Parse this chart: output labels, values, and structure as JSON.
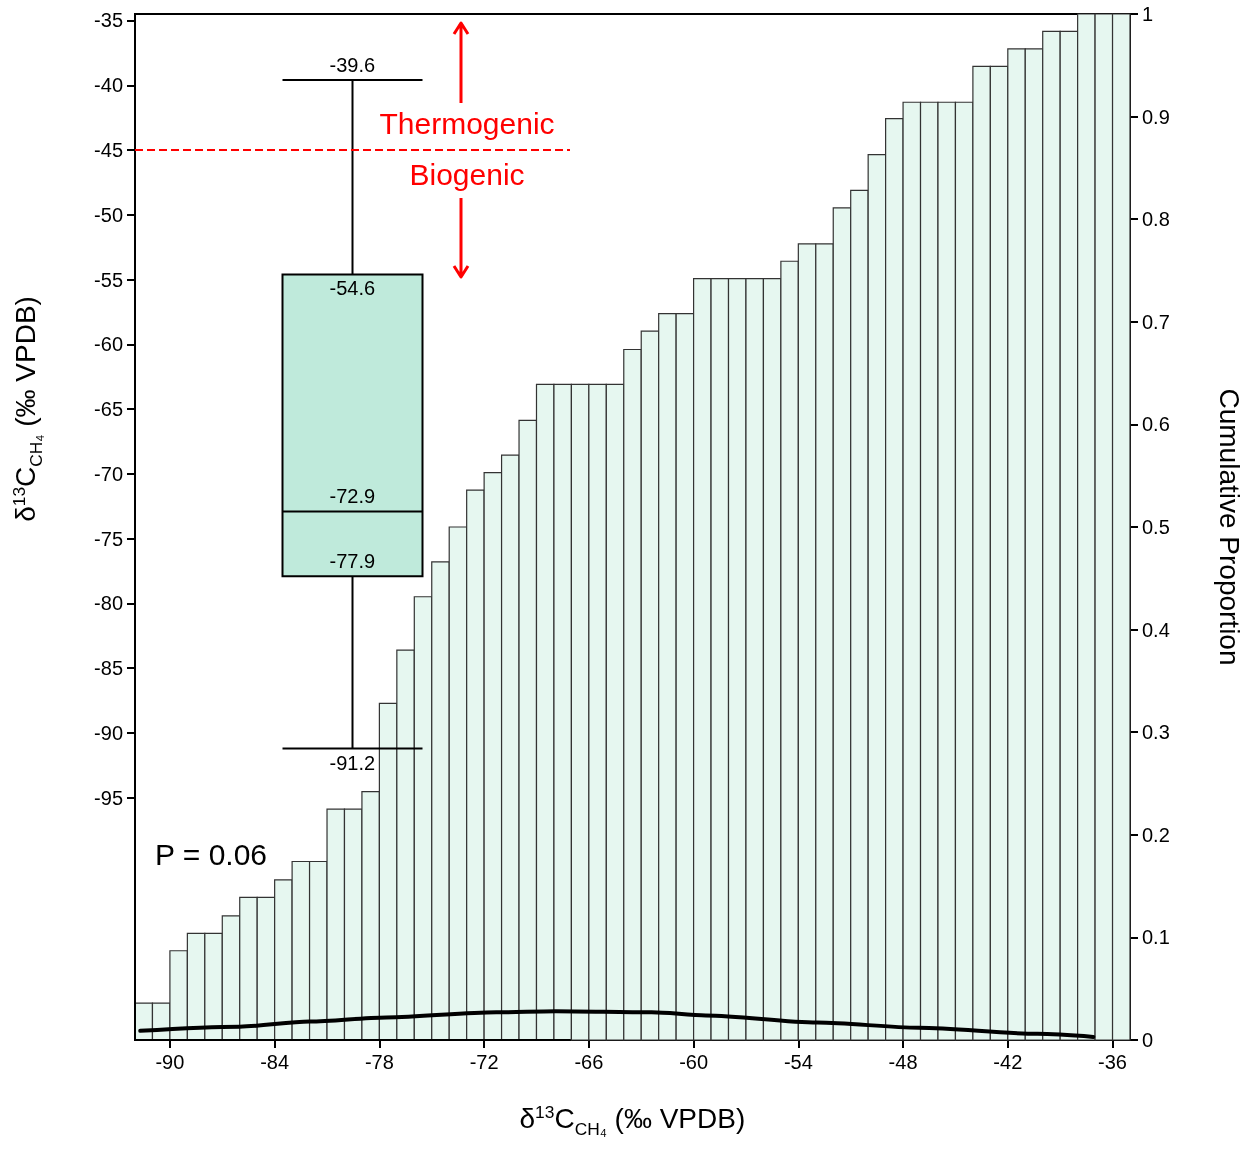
{
  "chart_data": [
    {
      "type": "histogram",
      "xlabel": "δ$^{13}$C$_{CH₄}$ (‰ VPDB)",
      "ylabel": "Cumulative Proportion",
      "xlim": [
        -92,
        -35
      ],
      "xticks": [
        -90,
        -84,
        -78,
        -72,
        -66,
        -60,
        -54,
        -48,
        -42,
        -36
      ],
      "ylim": [
        0,
        1
      ],
      "yticks": [
        0,
        0.1,
        0.2,
        0.3,
        0.4,
        0.5,
        0.6,
        0.7,
        0.8,
        0.9,
        1
      ],
      "grid": false,
      "marker": "none",
      "series": [
        {
          "color": "#e6f7f0",
          "bins": [
            -92,
            -91,
            -90,
            -89,
            -88,
            -87,
            -86,
            -85,
            -84,
            -83,
            -82,
            -81,
            -80,
            -79,
            -78,
            -77,
            -76,
            -75,
            -74,
            -73,
            -72,
            -71,
            -70,
            -69,
            -68,
            -67,
            -66,
            -65,
            -64,
            -63,
            -62,
            -61,
            -60,
            -59,
            -58,
            -57,
            -56,
            -55,
            -54,
            -53,
            -52,
            -51,
            -50,
            -49,
            -48,
            -47,
            -46,
            -45,
            -44,
            -43,
            -42,
            -41,
            -40,
            -39,
            -38,
            -37,
            -36,
            -35
          ],
          "values": [
            0.036,
            0.036,
            0.087,
            0.104,
            0.104,
            0.121,
            0.139,
            0.139,
            0.156,
            0.174,
            0.174,
            0.225,
            0.225,
            0.242,
            0.328,
            0.38,
            0.432,
            0.466,
            0.5,
            0.536,
            0.553,
            0.57,
            0.604,
            0.639,
            0.639,
            0.639,
            0.639,
            0.639,
            0.673,
            0.691,
            0.708,
            0.708,
            0.742,
            0.742,
            0.742,
            0.742,
            0.742,
            0.759,
            0.776,
            0.776,
            0.811,
            0.828,
            0.863,
            0.898,
            0.914,
            0.914,
            0.914,
            0.914,
            0.949,
            0.949,
            0.966,
            0.966,
            0.983,
            0.983,
            1,
            1,
            1
          ]
        },
        {
          "type": "line",
          "color": "#000000",
          "line_style": "solid",
          "x": [
            -91.7,
            -86,
            -82,
            -77.6,
            -71.3,
            -67.9,
            -62.4,
            -59.3,
            -52.9,
            -47.1,
            -40.3,
            -37.1
          ],
          "values": [
            0.009,
            0.013,
            0.018,
            0.022,
            0.027,
            0.028,
            0.027,
            0.024,
            0.017,
            0.012,
            0.006,
            0.003
          ]
        }
      ]
    },
    {
      "type": "box",
      "ylabel": "δ$^{13}$C$_{CH₄}$ (‰ VPDB)",
      "ylim": [
        -113.7,
        -34.5
      ],
      "yticks": [
        -35,
        -40,
        -45,
        -50,
        -55,
        -60,
        -65,
        -70,
        -75,
        -80,
        -85,
        -90,
        -95
      ],
      "categories": [
        null
      ],
      "tick_labels": "y",
      "grid": false,
      "series": [
        {
          "color": "#bfeadb",
          "boxes": [
            {
              "low": -91.2,
              "q1": -77.9,
              "median": -72.9,
              "q3": -54.6,
              "high": -39.6
            }
          ]
        }
      ],
      "ref_lines": [
        {
          "axis": "y",
          "value": -45,
          "color": "#ff0000",
          "line_style": "dashed"
        }
      ],
      "annotations": [
        "Thermogenic",
        "Biogenic",
        "P = 0.06",
        {
          "text": "-39.6",
          "y": -39.6
        },
        {
          "text": "-54.6",
          "y": -54.6
        },
        {
          "text": "-72.9",
          "y": -72.9
        },
        {
          "text": "-77.9",
          "y": -77.9
        },
        {
          "text": "-91.2",
          "y": -91.2
        }
      ]
    }
  ]
}
